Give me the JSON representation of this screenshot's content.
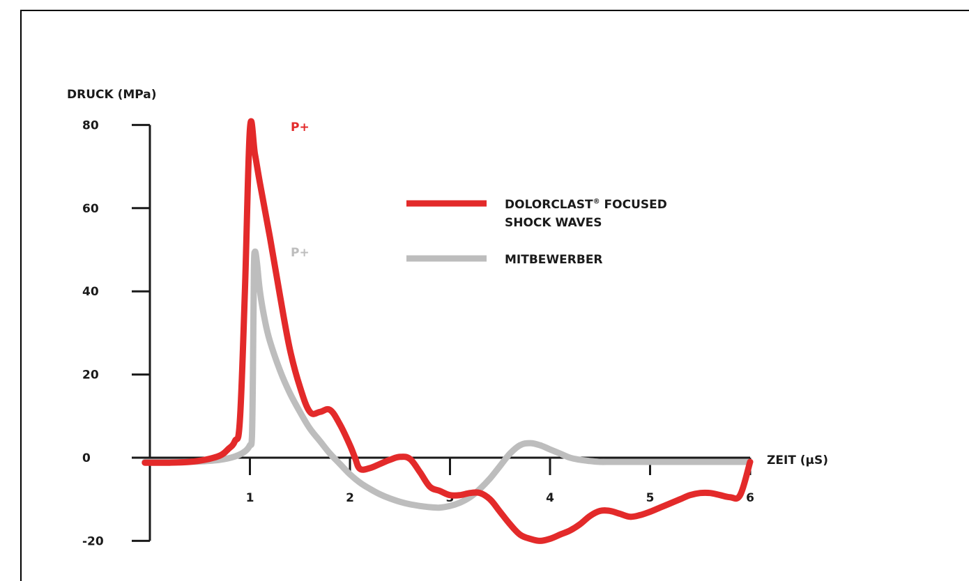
{
  "chart_data": {
    "type": "line",
    "ylabel": "DRUCK (MPa)",
    "xlabel": "ZEIT (µS)",
    "ylim": [
      -20,
      80
    ],
    "xlim": [
      0,
      6
    ],
    "yticks": [
      80,
      60,
      40,
      20,
      0,
      -20
    ],
    "xticks": [
      1,
      2,
      3,
      4,
      5,
      6
    ],
    "colors": {
      "dolorclast": "#e32a2a",
      "competitor": "#bdbdbd",
      "axis": "#1a1a1a"
    },
    "series": [
      {
        "name": "DOLORCLAST® FOCUSED SHOCK WAVES",
        "color": "#e32a2a",
        "peak_label": "P+",
        "x": [
          -0.05,
          0.2,
          0.4,
          0.55,
          0.7,
          0.78,
          0.85,
          0.9,
          0.95,
          1.0,
          1.05,
          1.1,
          1.2,
          1.3,
          1.4,
          1.5,
          1.6,
          1.7,
          1.8,
          1.9,
          2.0,
          2.05,
          2.1,
          2.2,
          2.3,
          2.4,
          2.5,
          2.6,
          2.7,
          2.8,
          2.9,
          3.0,
          3.1,
          3.2,
          3.3,
          3.4,
          3.5,
          3.6,
          3.7,
          3.8,
          3.9,
          4.0,
          4.1,
          4.2,
          4.3,
          4.4,
          4.5,
          4.6,
          4.7,
          4.8,
          4.9,
          5.0,
          5.1,
          5.2,
          5.3,
          5.4,
          5.5,
          5.6,
          5.7,
          5.8,
          5.9,
          6.0
        ],
        "values": [
          -1.2,
          -1.2,
          -1.0,
          -0.5,
          0.5,
          2,
          4,
          9,
          40,
          79,
          73,
          66,
          53,
          39,
          26,
          17,
          11,
          11,
          11.5,
          8,
          3,
          0,
          -2.7,
          -2.5,
          -1.5,
          -0.5,
          0.2,
          -0.3,
          -3.5,
          -7,
          -8,
          -9,
          -9,
          -8.5,
          -8.5,
          -10,
          -13,
          -16,
          -18.5,
          -19.5,
          -20,
          -19.5,
          -18.5,
          -17.5,
          -16,
          -14,
          -12.8,
          -12.8,
          -13.5,
          -14.2,
          -13.8,
          -13,
          -12,
          -11,
          -10,
          -9,
          -8.5,
          -8.5,
          -9,
          -9.5,
          -9,
          -1
        ]
      },
      {
        "name": "MITBEWERBER",
        "color": "#bdbdbd",
        "peak_label": "P+",
        "x": [
          -0.05,
          0.3,
          0.5,
          0.7,
          0.85,
          0.95,
          1.0,
          1.02,
          1.03,
          1.04,
          1.05,
          1.07,
          1.1,
          1.15,
          1.2,
          1.3,
          1.4,
          1.5,
          1.6,
          1.7,
          1.8,
          1.9,
          2.0,
          2.1,
          2.2,
          2.3,
          2.4,
          2.5,
          2.6,
          2.7,
          2.8,
          2.9,
          3.0,
          3.1,
          3.2,
          3.3,
          3.4,
          3.5,
          3.6,
          3.7,
          3.8,
          3.9,
          4.0,
          4.1,
          4.2,
          4.3,
          4.4,
          4.5,
          4.6,
          4.7,
          4.8,
          5.0,
          5.5,
          6.0
        ],
        "values": [
          -1,
          -1,
          -0.9,
          -0.5,
          0.3,
          1.5,
          3,
          5,
          20,
          45,
          49.5,
          47,
          40,
          33,
          28,
          21,
          15.5,
          11,
          7,
          4,
          1,
          -1.5,
          -4,
          -6,
          -7.5,
          -8.8,
          -9.8,
          -10.6,
          -11.2,
          -11.6,
          -11.9,
          -12,
          -11.6,
          -10.8,
          -9.5,
          -7.5,
          -5,
          -2,
          1,
          3,
          3.5,
          3,
          2,
          1,
          0,
          -0.5,
          -0.8,
          -1,
          -1,
          -1,
          -1,
          -1,
          -1,
          -1
        ]
      }
    ],
    "legend": [
      {
        "label": "DOLORCLAST",
        "sup": "®",
        "label_rest": " FOCUSED",
        "label_line2": "SHOCK WAVES",
        "color": "#e32a2a"
      },
      {
        "label": "MITBEWERBER",
        "color": "#bdbdbd"
      }
    ]
  }
}
